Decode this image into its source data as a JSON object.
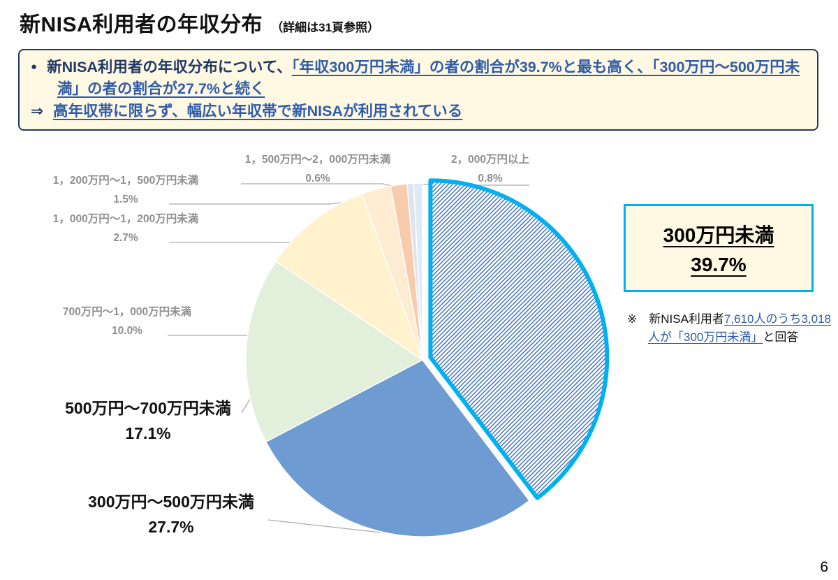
{
  "page_number": "6",
  "title": {
    "main": "新NISA利用者の年収分布",
    "sub": "（詳細は31頁参照）"
  },
  "summary": {
    "bullet": "●",
    "lead": "新NISA利用者の年収分布について、",
    "highlight": "「年収300万円未満」の者の割合が39.7%と最も高く、「300万円～500万円未満」の者の割合が27.7%と続く",
    "arrow": "⇒",
    "conclusion": "高年収帯に限らず、幅広い年収帯で新NISAが利用されている"
  },
  "callout": {
    "title": "300万円未満",
    "value": "39.7%"
  },
  "note": {
    "prefix": "※　新NISA利用者",
    "highlight": "7,610人のうち3,018人が「300万円未満」",
    "suffix": "と回答"
  },
  "colors": {
    "accent_cyan": "#00B0F0",
    "navy": "#1F3864",
    "link_blue": "#2E5BA8",
    "box_bg": "#FFF9E3",
    "label_gray": "#8F8F8F",
    "leader_gray": "#ABABAB",
    "hatch_line": "#4472C4"
  },
  "chart_data": {
    "type": "pie",
    "title": "新NISA利用者の年収分布",
    "unit": "%",
    "direction": "clockwise",
    "start_angle_deg": 0,
    "slices": [
      {
        "label": "300万円未満",
        "value": 39.7,
        "display": "39.7%",
        "fill": "hatched",
        "border": "#00B0F0",
        "exploded": true
      },
      {
        "label": "300万円～500万円未満",
        "value": 27.7,
        "display": "27.7%",
        "color": "#6E9CD2"
      },
      {
        "label": "500万円～700万円未満",
        "value": 17.1,
        "display": "17.1%",
        "color": "#E2EFDA"
      },
      {
        "label": "700万円～1，000万円未満",
        "value": 10.0,
        "display": "10.0%",
        "color": "#FFF2CC"
      },
      {
        "label": "1，000万円～1，200万円未満",
        "value": 2.7,
        "display": "2.7%",
        "color": "#FDEBD2"
      },
      {
        "label": "1，200万円～1，500万円未満",
        "value": 1.5,
        "display": "1.5%",
        "color": "#F8CBAD"
      },
      {
        "label": "1，500万円～2，000万円未満",
        "value": 0.6,
        "display": "0.6%",
        "color": "#DDE3EF"
      },
      {
        "label": "2，000万円以上",
        "value": 0.8,
        "display": "0.8%",
        "color": "#DEEBF7"
      }
    ]
  }
}
